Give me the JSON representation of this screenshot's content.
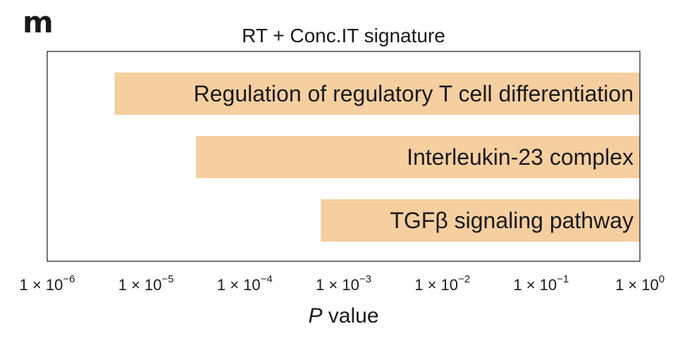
{
  "panel_letter": "m",
  "chart_data": {
    "type": "bar",
    "orientation": "horizontal",
    "title": "RT + Conc.IT signature",
    "xlabel_italic": "P",
    "xlabel_rest": " value",
    "ylabel": "",
    "x_scale": "log",
    "xlim": [
      1e-06,
      1
    ],
    "tick_labels": [
      "1 × 10",
      "1 × 10",
      "1 × 10",
      "1 × 10",
      "1 × 10",
      "1 × 10",
      "1 × 10"
    ],
    "tick_exponents": [
      "−6",
      "−5",
      "−4",
      "−3",
      "−2",
      "−1",
      "0"
    ],
    "tick_values": [
      1e-06,
      1e-05,
      0.0001,
      0.001,
      0.01,
      0.1,
      1
    ],
    "categories": [
      "Regulation of regulatory T cell differentiation",
      "Interleukin-23 complex",
      "TGFβ signaling pathway"
    ],
    "values": [
      4.8e-06,
      3.2e-05,
      0.00059
    ],
    "bar_color": "#F5CFA0",
    "grid": false,
    "legend": "none"
  }
}
